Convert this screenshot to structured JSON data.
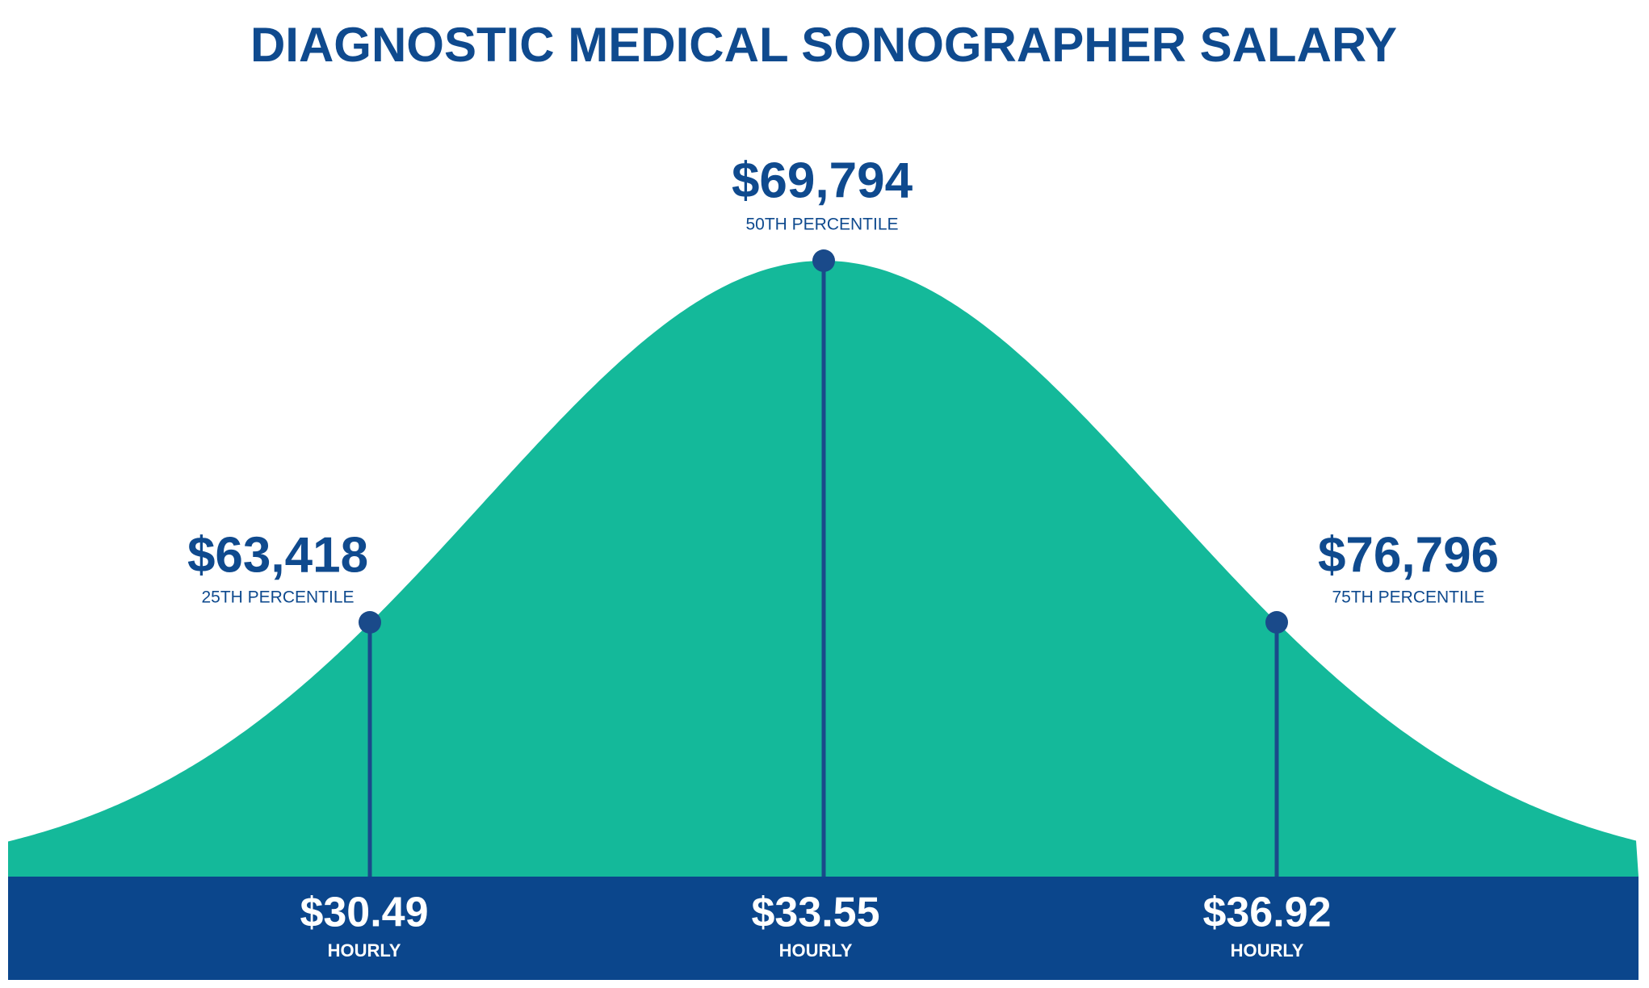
{
  "title": "DIAGNOSTIC MEDICAL SONOGRAPHER SALARY",
  "percentiles": [
    {
      "annual": "$63,418",
      "label": "25TH PERCENTILE",
      "hourly": "$30.49",
      "hourly_label": "HOURLY"
    },
    {
      "annual": "$69,794",
      "label": "50TH PERCENTILE",
      "hourly": "$33.55",
      "hourly_label": "HOURLY"
    },
    {
      "annual": "$76,796",
      "label": "75TH PERCENTILE",
      "hourly": "$36.92",
      "hourly_label": "HOURLY"
    }
  ]
}
